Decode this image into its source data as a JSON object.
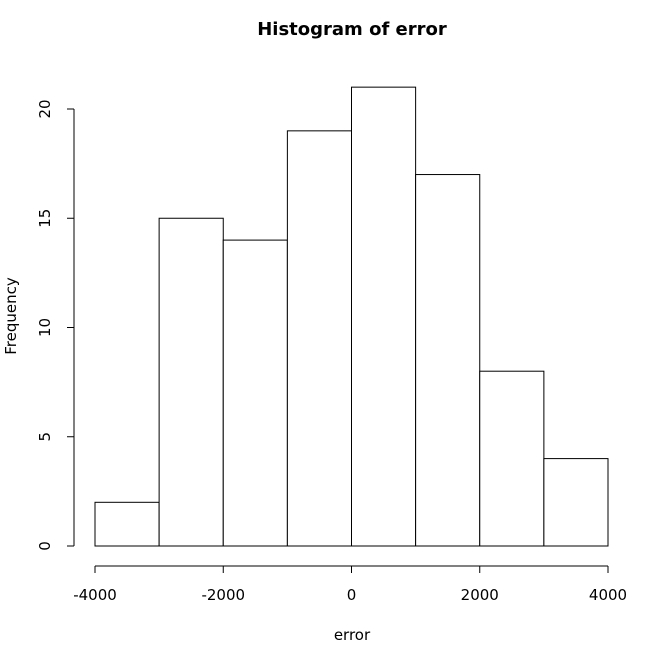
{
  "chart_data": {
    "type": "bar",
    "title": "Histogram of error",
    "xlabel": "error",
    "ylabel": "Frequency",
    "bins": [
      {
        "from": -4000,
        "to": -3000,
        "count": 2
      },
      {
        "from": -3000,
        "to": -2000,
        "count": 15
      },
      {
        "from": -2000,
        "to": -1000,
        "count": 14
      },
      {
        "from": -1000,
        "to": 0,
        "count": 19
      },
      {
        "from": 0,
        "to": 1000,
        "count": 21
      },
      {
        "from": 1000,
        "to": 2000,
        "count": 17
      },
      {
        "from": 2000,
        "to": 3000,
        "count": 8
      },
      {
        "from": 3000,
        "to": 4000,
        "count": 4
      }
    ],
    "x_ticks": [
      -4000,
      -2000,
      0,
      2000,
      4000
    ],
    "y_ticks": [
      0,
      5,
      10,
      15,
      20
    ],
    "xlim": [
      -4000,
      4000
    ],
    "ylim": [
      0,
      20
    ],
    "grid": false
  }
}
